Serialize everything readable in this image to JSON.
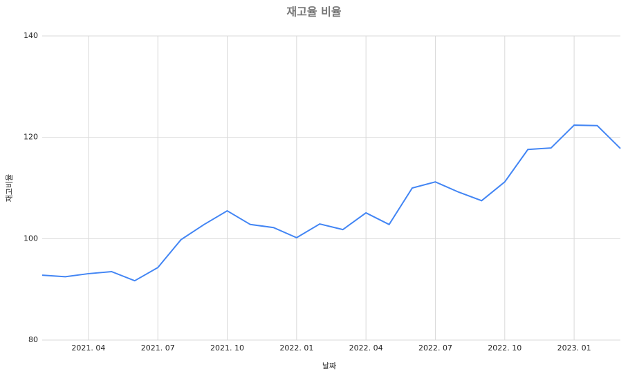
{
  "chart_data": {
    "type": "line",
    "title": "재고율 비율",
    "x_label": "날짜",
    "y_label": "재고비율",
    "x": [
      "2021-02",
      "2021-03",
      "2021-04",
      "2021-05",
      "2021-06",
      "2021-07",
      "2021-08",
      "2021-09",
      "2021-10",
      "2021-11",
      "2021-12",
      "2022-01",
      "2022-02",
      "2022-03",
      "2022-04",
      "2022-05",
      "2022-06",
      "2022-07",
      "2022-08",
      "2022-09",
      "2022-10",
      "2022-11",
      "2022-12",
      "2023-01",
      "2023-02",
      "2023-03"
    ],
    "series": [
      {
        "name": "재고비율",
        "color": "#4285f4",
        "values": [
          92.8,
          92.5,
          93.1,
          93.5,
          91.7,
          94.3,
          99.8,
          102.8,
          105.5,
          102.8,
          102.2,
          100.2,
          102.9,
          101.8,
          105.1,
          102.8,
          110.0,
          111.2,
          109.2,
          107.5,
          111.2,
          117.6,
          117.9,
          122.4,
          122.3,
          117.8
        ]
      }
    ],
    "xlim": [
      "2021-02",
      "2023-03"
    ],
    "xticks": [
      {
        "value": "2021-04",
        "label": "2021. 04"
      },
      {
        "value": "2021-07",
        "label": "2021. 07"
      },
      {
        "value": "2021-10",
        "label": "2021. 10"
      },
      {
        "value": "2022-01",
        "label": "2022. 01"
      },
      {
        "value": "2022-04",
        "label": "2022. 04"
      },
      {
        "value": "2022-07",
        "label": "2022. 07"
      },
      {
        "value": "2022-10",
        "label": "2022. 10"
      },
      {
        "value": "2023-01",
        "label": "2023. 01"
      }
    ],
    "ylim": [
      80,
      140
    ],
    "yticks": [
      80,
      100,
      120,
      140
    ],
    "grid": true
  }
}
